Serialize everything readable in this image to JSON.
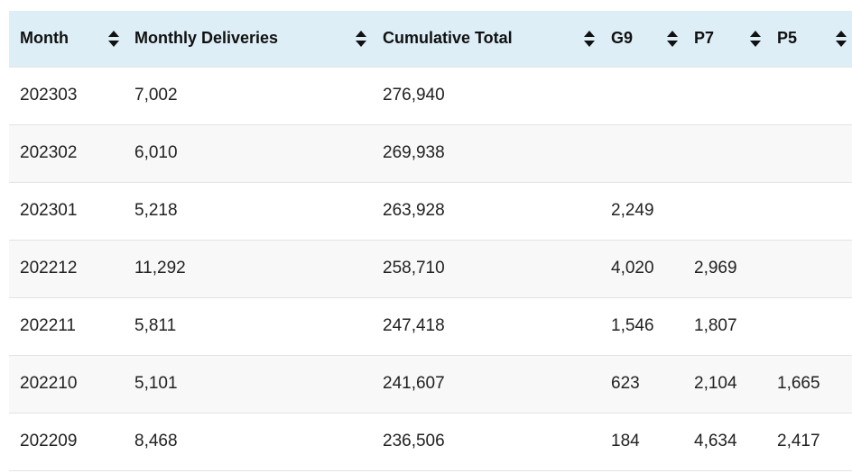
{
  "table": {
    "columns": [
      {
        "label": "Month",
        "sort_icon": "sort-icon"
      },
      {
        "label": "Monthly Deliveries",
        "sort_icon": "sort-icon"
      },
      {
        "label": "Cumulative Total",
        "sort_icon": "sort-icon"
      },
      {
        "label": "G9",
        "sort_icon": "sort-icon"
      },
      {
        "label": "P7",
        "sort_icon": "sort-icon"
      },
      {
        "label": "P5",
        "sort_icon": "sort-icon"
      }
    ],
    "rows": [
      {
        "month": "202303",
        "monthly": "7,002",
        "cumulative": "276,940",
        "g9": "",
        "p7": "",
        "p5": ""
      },
      {
        "month": "202302",
        "monthly": "6,010",
        "cumulative": "269,938",
        "g9": "",
        "p7": "",
        "p5": ""
      },
      {
        "month": "202301",
        "monthly": "5,218",
        "cumulative": "263,928",
        "g9": "2,249",
        "p7": "",
        "p5": ""
      },
      {
        "month": "202212",
        "monthly": "11,292",
        "cumulative": "258,710",
        "g9": "4,020",
        "p7": "2,969",
        "p5": ""
      },
      {
        "month": "202211",
        "monthly": "5,811",
        "cumulative": "247,418",
        "g9": "1,546",
        "p7": "1,807",
        "p5": ""
      },
      {
        "month": "202210",
        "monthly": "5,101",
        "cumulative": "241,607",
        "g9": "623",
        "p7": "2,104",
        "p5": "1,665"
      },
      {
        "month": "202209",
        "monthly": "8,468",
        "cumulative": "236,506",
        "g9": "184",
        "p7": "4,634",
        "p5": "2,417"
      }
    ]
  },
  "colors": {
    "header_bg": "#ddeef6",
    "row_alt_bg": "#f8f8f8",
    "border": "#e3e3e3"
  }
}
